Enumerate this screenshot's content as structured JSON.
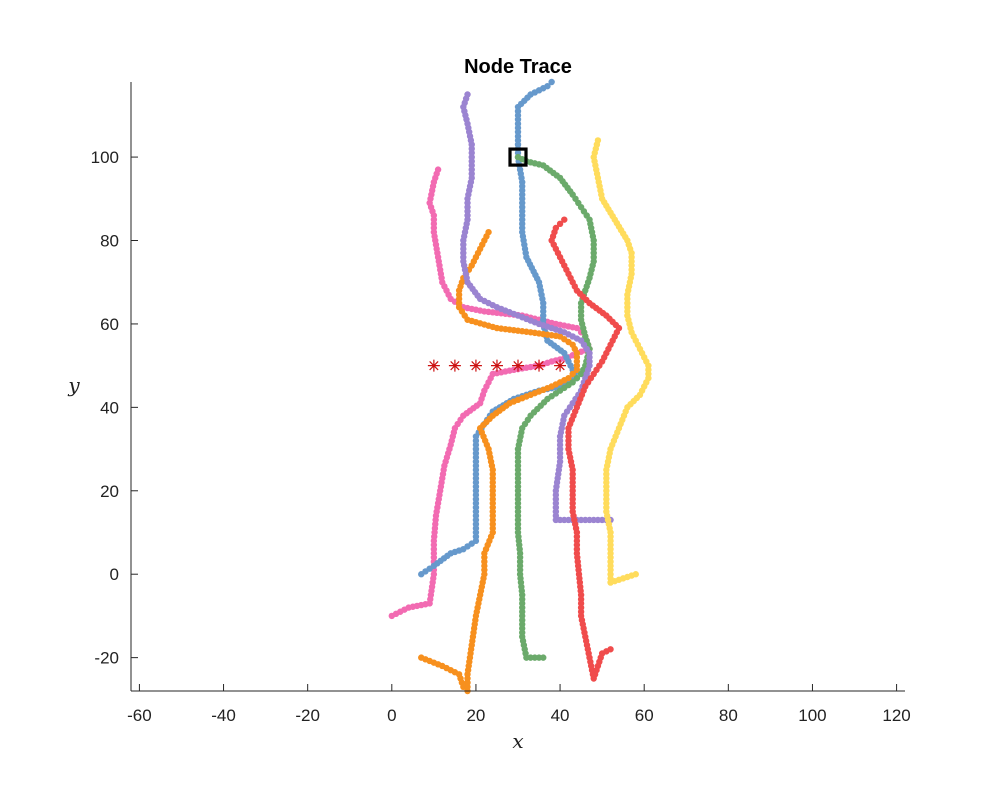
{
  "chart_data": {
    "type": "scatter",
    "title": "Node Trace",
    "xlabel": "x",
    "ylabel": "y",
    "xlim": [
      -62,
      122
    ],
    "ylim": [
      -28,
      118
    ],
    "xticks": [
      -60,
      -40,
      -20,
      0,
      20,
      40,
      60,
      80,
      100,
      120
    ],
    "yticks": [
      -20,
      0,
      20,
      40,
      60,
      80,
      100
    ],
    "grid": false,
    "legend": "none",
    "series": [
      {
        "color": "#f26bb2",
        "points": [
          [
            0,
            -10
          ],
          [
            4,
            -8
          ],
          [
            9,
            -7
          ],
          [
            10,
            0
          ],
          [
            10,
            8
          ],
          [
            10.5,
            14
          ],
          [
            11.5,
            20
          ],
          [
            12.5,
            26
          ],
          [
            14,
            31
          ],
          [
            15,
            35
          ],
          [
            17,
            38
          ],
          [
            21,
            41
          ],
          [
            22,
            44
          ],
          [
            24,
            48
          ],
          [
            29,
            49
          ],
          [
            35,
            50
          ],
          [
            38,
            51
          ],
          [
            42,
            52
          ],
          [
            44,
            53
          ],
          [
            47,
            54
          ],
          [
            46,
            57
          ],
          [
            44,
            59
          ],
          [
            39,
            60
          ],
          [
            31,
            62
          ],
          [
            22,
            63
          ],
          [
            17,
            64
          ],
          [
            14,
            66
          ],
          [
            12,
            70
          ],
          [
            11,
            76
          ],
          [
            10,
            82
          ],
          [
            10,
            86
          ],
          [
            9,
            89
          ],
          [
            10,
            94
          ],
          [
            11,
            97
          ]
        ]
      },
      {
        "color": "#6699cc",
        "points": [
          [
            7,
            0
          ],
          [
            10,
            2
          ],
          [
            14,
            5
          ],
          [
            17,
            6
          ],
          [
            20,
            8
          ],
          [
            20,
            13
          ],
          [
            20,
            20
          ],
          [
            20,
            27
          ],
          [
            20,
            33
          ],
          [
            22,
            36
          ],
          [
            24,
            39
          ],
          [
            29,
            42
          ],
          [
            35,
            44
          ],
          [
            40,
            45
          ],
          [
            44,
            47
          ],
          [
            42,
            51
          ],
          [
            41,
            53
          ],
          [
            37,
            56
          ],
          [
            36,
            60
          ],
          [
            36,
            65
          ],
          [
            35,
            70
          ],
          [
            32,
            76
          ],
          [
            31,
            82
          ],
          [
            31,
            88
          ],
          [
            31,
            94
          ],
          [
            30,
            100
          ],
          [
            30,
            106
          ],
          [
            30,
            112
          ],
          [
            33,
            115
          ],
          [
            37,
            117
          ],
          [
            38,
            118
          ]
        ]
      },
      {
        "color": "#f7901e",
        "points": [
          [
            7,
            -20
          ],
          [
            12,
            -22
          ],
          [
            16,
            -24
          ],
          [
            17,
            -27
          ],
          [
            18,
            -28
          ],
          [
            18,
            -24
          ],
          [
            19,
            -17
          ],
          [
            20,
            -10
          ],
          [
            21,
            -5
          ],
          [
            22,
            0
          ],
          [
            22,
            5
          ],
          [
            24,
            10
          ],
          [
            24,
            15
          ],
          [
            24,
            20
          ],
          [
            24,
            25
          ],
          [
            23,
            30
          ],
          [
            21,
            35
          ],
          [
            24,
            38
          ],
          [
            28,
            41
          ],
          [
            33,
            43
          ],
          [
            38,
            45
          ],
          [
            42,
            47
          ],
          [
            44,
            49
          ],
          [
            44,
            53
          ],
          [
            43,
            55
          ],
          [
            40,
            57
          ],
          [
            33,
            58
          ],
          [
            25,
            59
          ],
          [
            18,
            61
          ],
          [
            16,
            64
          ],
          [
            16,
            68
          ],
          [
            17,
            71
          ],
          [
            19,
            74
          ],
          [
            21,
            78
          ],
          [
            23,
            82
          ]
        ]
      },
      {
        "color": "#6baa6b",
        "points": [
          [
            36,
            -20
          ],
          [
            32,
            -20
          ],
          [
            31,
            -15
          ],
          [
            31,
            -10
          ],
          [
            31,
            -5
          ],
          [
            30.5,
            0
          ],
          [
            30.5,
            5
          ],
          [
            30,
            10
          ],
          [
            30,
            15
          ],
          [
            30,
            20
          ],
          [
            30,
            25
          ],
          [
            30,
            30
          ],
          [
            31,
            35
          ],
          [
            33,
            38
          ],
          [
            37,
            42
          ],
          [
            40,
            44
          ],
          [
            43,
            46
          ],
          [
            45,
            48
          ],
          [
            46,
            50
          ],
          [
            47,
            54
          ],
          [
            46,
            57
          ],
          [
            45,
            61
          ],
          [
            45,
            65
          ],
          [
            46,
            68
          ],
          [
            47,
            71
          ],
          [
            48,
            75
          ],
          [
            48,
            80
          ],
          [
            47,
            85
          ],
          [
            45,
            88
          ],
          [
            43,
            91
          ],
          [
            40,
            95
          ],
          [
            36,
            98
          ],
          [
            32,
            99
          ],
          [
            30,
            100
          ]
        ]
      },
      {
        "color": "#9b84d1",
        "points": [
          [
            52,
            13
          ],
          [
            48,
            13
          ],
          [
            44,
            13
          ],
          [
            39,
            13
          ],
          [
            39,
            20
          ],
          [
            40,
            27
          ],
          [
            40,
            33
          ],
          [
            41,
            38
          ],
          [
            43,
            41
          ],
          [
            45,
            44
          ],
          [
            46,
            47
          ],
          [
            47,
            50
          ],
          [
            47,
            53
          ],
          [
            45,
            56
          ],
          [
            41,
            58
          ],
          [
            35,
            60
          ],
          [
            30,
            62
          ],
          [
            25,
            64
          ],
          [
            21,
            66
          ],
          [
            18,
            70
          ],
          [
            17,
            75
          ],
          [
            17,
            80
          ],
          [
            18,
            85
          ],
          [
            18,
            90
          ],
          [
            19,
            95
          ],
          [
            19,
            100
          ],
          [
            19,
            103
          ],
          [
            18,
            108
          ],
          [
            17,
            112
          ],
          [
            18,
            115
          ]
        ]
      },
      {
        "color": "#f04c4c",
        "points": [
          [
            52,
            -18
          ],
          [
            50,
            -19
          ],
          [
            49,
            -22
          ],
          [
            48,
            -25
          ],
          [
            47,
            -20
          ],
          [
            46,
            -15
          ],
          [
            45,
            -10
          ],
          [
            45,
            -5
          ],
          [
            44.5,
            0
          ],
          [
            44,
            5
          ],
          [
            44,
            10
          ],
          [
            43,
            15
          ],
          [
            43,
            20
          ],
          [
            43,
            25
          ],
          [
            42,
            30
          ],
          [
            42,
            35
          ],
          [
            44,
            40
          ],
          [
            46,
            45
          ],
          [
            48,
            48
          ],
          [
            50,
            51
          ],
          [
            52,
            55
          ],
          [
            54,
            59
          ],
          [
            51,
            62
          ],
          [
            47,
            65
          ],
          [
            44,
            68
          ],
          [
            42,
            72
          ],
          [
            40,
            76
          ],
          [
            38,
            80
          ],
          [
            39,
            83
          ],
          [
            41,
            85
          ]
        ]
      },
      {
        "color": "#ffdc5c",
        "points": [
          [
            58,
            0
          ],
          [
            55,
            -1
          ],
          [
            52,
            -2
          ],
          [
            52,
            5
          ],
          [
            52,
            10
          ],
          [
            51,
            15
          ],
          [
            51,
            20
          ],
          [
            51,
            25
          ],
          [
            52,
            30
          ],
          [
            54,
            35
          ],
          [
            56,
            40
          ],
          [
            59,
            43
          ],
          [
            61,
            47
          ],
          [
            61,
            50
          ],
          [
            59,
            54
          ],
          [
            57,
            58
          ],
          [
            56,
            62
          ],
          [
            56,
            67
          ],
          [
            57,
            72
          ],
          [
            57,
            77
          ],
          [
            56,
            80
          ],
          [
            53,
            85
          ],
          [
            50,
            90
          ],
          [
            49,
            95
          ],
          [
            48,
            100
          ],
          [
            49,
            104
          ]
        ]
      },
      {
        "color": "#cc1111",
        "marker": "star",
        "points": [
          [
            10,
            50
          ],
          [
            15,
            50
          ],
          [
            20,
            50
          ],
          [
            25,
            50
          ],
          [
            30,
            50
          ],
          [
            35,
            50
          ],
          [
            40,
            50
          ]
        ]
      }
    ],
    "annotations": [
      {
        "type": "square-marker",
        "x": 30,
        "y": 100,
        "color": "#000000"
      }
    ]
  }
}
